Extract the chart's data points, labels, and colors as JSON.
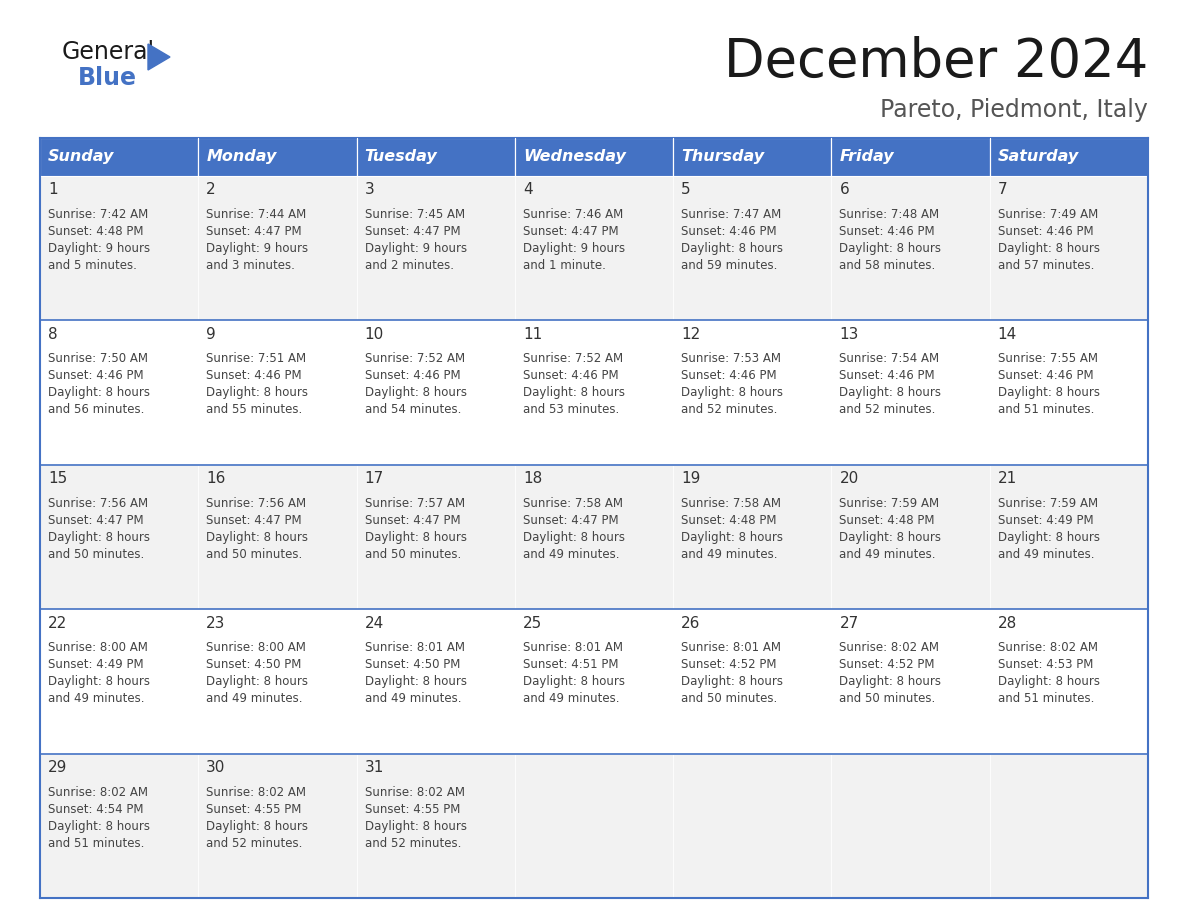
{
  "title": "December 2024",
  "subtitle": "Pareto, Piedmont, Italy",
  "header_bg": "#4472C4",
  "header_text_color": "#FFFFFF",
  "weekdays": [
    "Sunday",
    "Monday",
    "Tuesday",
    "Wednesday",
    "Thursday",
    "Friday",
    "Saturday"
  ],
  "row_bg_odd": "#F2F2F2",
  "row_bg_even": "#FFFFFF",
  "cell_text_color": "#444444",
  "day_num_color": "#333333",
  "border_color": "#4472C4",
  "calendar_data": [
    [
      {
        "day": "1",
        "sunrise": "7:42 AM",
        "sunset": "4:48 PM",
        "daylight_h": "9 hours",
        "daylight_m": "and 5 minutes."
      },
      {
        "day": "2",
        "sunrise": "7:44 AM",
        "sunset": "4:47 PM",
        "daylight_h": "9 hours",
        "daylight_m": "and 3 minutes."
      },
      {
        "day": "3",
        "sunrise": "7:45 AM",
        "sunset": "4:47 PM",
        "daylight_h": "9 hours",
        "daylight_m": "and 2 minutes."
      },
      {
        "day": "4",
        "sunrise": "7:46 AM",
        "sunset": "4:47 PM",
        "daylight_h": "9 hours",
        "daylight_m": "and 1 minute."
      },
      {
        "day": "5",
        "sunrise": "7:47 AM",
        "sunset": "4:46 PM",
        "daylight_h": "8 hours",
        "daylight_m": "and 59 minutes."
      },
      {
        "day": "6",
        "sunrise": "7:48 AM",
        "sunset": "4:46 PM",
        "daylight_h": "8 hours",
        "daylight_m": "and 58 minutes."
      },
      {
        "day": "7",
        "sunrise": "7:49 AM",
        "sunset": "4:46 PM",
        "daylight_h": "8 hours",
        "daylight_m": "and 57 minutes."
      }
    ],
    [
      {
        "day": "8",
        "sunrise": "7:50 AM",
        "sunset": "4:46 PM",
        "daylight_h": "8 hours",
        "daylight_m": "and 56 minutes."
      },
      {
        "day": "9",
        "sunrise": "7:51 AM",
        "sunset": "4:46 PM",
        "daylight_h": "8 hours",
        "daylight_m": "and 55 minutes."
      },
      {
        "day": "10",
        "sunrise": "7:52 AM",
        "sunset": "4:46 PM",
        "daylight_h": "8 hours",
        "daylight_m": "and 54 minutes."
      },
      {
        "day": "11",
        "sunrise": "7:52 AM",
        "sunset": "4:46 PM",
        "daylight_h": "8 hours",
        "daylight_m": "and 53 minutes."
      },
      {
        "day": "12",
        "sunrise": "7:53 AM",
        "sunset": "4:46 PM",
        "daylight_h": "8 hours",
        "daylight_m": "and 52 minutes."
      },
      {
        "day": "13",
        "sunrise": "7:54 AM",
        "sunset": "4:46 PM",
        "daylight_h": "8 hours",
        "daylight_m": "and 52 minutes."
      },
      {
        "day": "14",
        "sunrise": "7:55 AM",
        "sunset": "4:46 PM",
        "daylight_h": "8 hours",
        "daylight_m": "and 51 minutes."
      }
    ],
    [
      {
        "day": "15",
        "sunrise": "7:56 AM",
        "sunset": "4:47 PM",
        "daylight_h": "8 hours",
        "daylight_m": "and 50 minutes."
      },
      {
        "day": "16",
        "sunrise": "7:56 AM",
        "sunset": "4:47 PM",
        "daylight_h": "8 hours",
        "daylight_m": "and 50 minutes."
      },
      {
        "day": "17",
        "sunrise": "7:57 AM",
        "sunset": "4:47 PM",
        "daylight_h": "8 hours",
        "daylight_m": "and 50 minutes."
      },
      {
        "day": "18",
        "sunrise": "7:58 AM",
        "sunset": "4:47 PM",
        "daylight_h": "8 hours",
        "daylight_m": "and 49 minutes."
      },
      {
        "day": "19",
        "sunrise": "7:58 AM",
        "sunset": "4:48 PM",
        "daylight_h": "8 hours",
        "daylight_m": "and 49 minutes."
      },
      {
        "day": "20",
        "sunrise": "7:59 AM",
        "sunset": "4:48 PM",
        "daylight_h": "8 hours",
        "daylight_m": "and 49 minutes."
      },
      {
        "day": "21",
        "sunrise": "7:59 AM",
        "sunset": "4:49 PM",
        "daylight_h": "8 hours",
        "daylight_m": "and 49 minutes."
      }
    ],
    [
      {
        "day": "22",
        "sunrise": "8:00 AM",
        "sunset": "4:49 PM",
        "daylight_h": "8 hours",
        "daylight_m": "and 49 minutes."
      },
      {
        "day": "23",
        "sunrise": "8:00 AM",
        "sunset": "4:50 PM",
        "daylight_h": "8 hours",
        "daylight_m": "and 49 minutes."
      },
      {
        "day": "24",
        "sunrise": "8:01 AM",
        "sunset": "4:50 PM",
        "daylight_h": "8 hours",
        "daylight_m": "and 49 minutes."
      },
      {
        "day": "25",
        "sunrise": "8:01 AM",
        "sunset": "4:51 PM",
        "daylight_h": "8 hours",
        "daylight_m": "and 49 minutes."
      },
      {
        "day": "26",
        "sunrise": "8:01 AM",
        "sunset": "4:52 PM",
        "daylight_h": "8 hours",
        "daylight_m": "and 50 minutes."
      },
      {
        "day": "27",
        "sunrise": "8:02 AM",
        "sunset": "4:52 PM",
        "daylight_h": "8 hours",
        "daylight_m": "and 50 minutes."
      },
      {
        "day": "28",
        "sunrise": "8:02 AM",
        "sunset": "4:53 PM",
        "daylight_h": "8 hours",
        "daylight_m": "and 51 minutes."
      }
    ],
    [
      {
        "day": "29",
        "sunrise": "8:02 AM",
        "sunset": "4:54 PM",
        "daylight_h": "8 hours",
        "daylight_m": "and 51 minutes."
      },
      {
        "day": "30",
        "sunrise": "8:02 AM",
        "sunset": "4:55 PM",
        "daylight_h": "8 hours",
        "daylight_m": "and 52 minutes."
      },
      {
        "day": "31",
        "sunrise": "8:02 AM",
        "sunset": "4:55 PM",
        "daylight_h": "8 hours",
        "daylight_m": "and 52 minutes."
      },
      null,
      null,
      null,
      null
    ]
  ]
}
